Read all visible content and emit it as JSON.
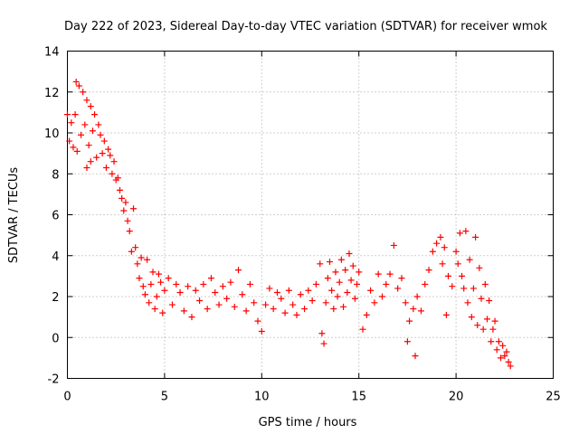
{
  "chart_data": {
    "type": "scatter",
    "title": "Day 222 of 2023, Sidereal Day-to-day VTEC variation (SDTVAR) for receiver wmok",
    "xlabel": "GPS time / hours",
    "ylabel": "SDTVAR / TECUs",
    "xlim": [
      0,
      25
    ],
    "ylim": [
      -2,
      14
    ],
    "xticks": [
      "0",
      "5",
      "10",
      "15",
      "20",
      "25"
    ],
    "yticks": [
      "-2",
      "0",
      "2",
      "4",
      "6",
      "8",
      "10",
      "12",
      "14"
    ],
    "grid": true,
    "marker": "+",
    "color": "#ff0000",
    "series": [
      {
        "name": "SDTVAR",
        "points": [
          [
            0.0,
            10.9
          ],
          [
            0.1,
            9.6
          ],
          [
            0.2,
            10.5
          ],
          [
            0.3,
            9.3
          ],
          [
            0.4,
            10.9
          ],
          [
            0.45,
            12.5
          ],
          [
            0.5,
            9.1
          ],
          [
            0.6,
            12.3
          ],
          [
            0.7,
            9.9
          ],
          [
            0.8,
            12.0
          ],
          [
            0.9,
            10.4
          ],
          [
            1.0,
            11.6
          ],
          [
            1.0,
            8.3
          ],
          [
            1.1,
            9.4
          ],
          [
            1.2,
            11.3
          ],
          [
            1.2,
            8.6
          ],
          [
            1.3,
            10.1
          ],
          [
            1.4,
            10.9
          ],
          [
            1.5,
            8.8
          ],
          [
            1.6,
            10.4
          ],
          [
            1.7,
            9.9
          ],
          [
            1.8,
            9.0
          ],
          [
            1.9,
            9.6
          ],
          [
            2.0,
            8.3
          ],
          [
            2.1,
            9.2
          ],
          [
            2.2,
            8.9
          ],
          [
            2.3,
            8.0
          ],
          [
            2.4,
            8.6
          ],
          [
            2.5,
            7.7
          ],
          [
            2.6,
            7.8
          ],
          [
            2.7,
            7.2
          ],
          [
            2.8,
            6.8
          ],
          [
            2.9,
            6.2
          ],
          [
            3.0,
            6.6
          ],
          [
            3.1,
            5.7
          ],
          [
            3.2,
            5.2
          ],
          [
            3.3,
            4.2
          ],
          [
            3.4,
            6.3
          ],
          [
            3.5,
            4.4
          ],
          [
            3.6,
            3.6
          ],
          [
            3.7,
            2.9
          ],
          [
            3.8,
            3.9
          ],
          [
            3.9,
            2.5
          ],
          [
            4.0,
            2.1
          ],
          [
            4.1,
            3.8
          ],
          [
            4.2,
            1.7
          ],
          [
            4.3,
            2.6
          ],
          [
            4.4,
            3.2
          ],
          [
            4.5,
            1.4
          ],
          [
            4.6,
            2.0
          ],
          [
            4.7,
            3.1
          ],
          [
            4.8,
            2.7
          ],
          [
            4.9,
            1.2
          ],
          [
            5.0,
            2.3
          ],
          [
            5.2,
            2.9
          ],
          [
            5.4,
            1.6
          ],
          [
            5.6,
            2.6
          ],
          [
            5.8,
            2.2
          ],
          [
            6.0,
            1.3
          ],
          [
            6.2,
            2.5
          ],
          [
            6.4,
            1.0
          ],
          [
            6.6,
            2.3
          ],
          [
            6.8,
            1.8
          ],
          [
            7.0,
            2.6
          ],
          [
            7.2,
            1.4
          ],
          [
            7.4,
            2.9
          ],
          [
            7.6,
            2.2
          ],
          [
            7.8,
            1.6
          ],
          [
            8.0,
            2.5
          ],
          [
            8.2,
            1.9
          ],
          [
            8.4,
            2.7
          ],
          [
            8.6,
            1.5
          ],
          [
            8.8,
            3.3
          ],
          [
            9.0,
            2.1
          ],
          [
            9.2,
            1.3
          ],
          [
            9.4,
            2.6
          ],
          [
            9.6,
            1.7
          ],
          [
            9.8,
            0.8
          ],
          [
            10.0,
            0.3
          ],
          [
            10.2,
            1.6
          ],
          [
            10.4,
            2.4
          ],
          [
            10.6,
            1.4
          ],
          [
            10.8,
            2.2
          ],
          [
            11.0,
            1.9
          ],
          [
            11.2,
            1.2
          ],
          [
            11.4,
            2.3
          ],
          [
            11.6,
            1.6
          ],
          [
            11.8,
            1.1
          ],
          [
            12.0,
            2.1
          ],
          [
            12.2,
            1.4
          ],
          [
            12.4,
            2.3
          ],
          [
            12.6,
            1.8
          ],
          [
            12.8,
            2.6
          ],
          [
            13.0,
            3.6
          ],
          [
            13.1,
            0.2
          ],
          [
            13.2,
            -0.3
          ],
          [
            13.3,
            1.7
          ],
          [
            13.4,
            2.9
          ],
          [
            13.5,
            3.7
          ],
          [
            13.6,
            2.3
          ],
          [
            13.7,
            1.4
          ],
          [
            13.8,
            3.2
          ],
          [
            13.9,
            2.0
          ],
          [
            14.0,
            2.7
          ],
          [
            14.1,
            3.8
          ],
          [
            14.2,
            1.5
          ],
          [
            14.3,
            3.3
          ],
          [
            14.4,
            2.2
          ],
          [
            14.5,
            4.1
          ],
          [
            14.6,
            2.8
          ],
          [
            14.7,
            3.5
          ],
          [
            14.8,
            1.9
          ],
          [
            14.9,
            2.6
          ],
          [
            15.0,
            3.2
          ],
          [
            15.2,
            0.4
          ],
          [
            15.4,
            1.1
          ],
          [
            15.6,
            2.3
          ],
          [
            15.8,
            1.7
          ],
          [
            16.0,
            3.1
          ],
          [
            16.2,
            2.0
          ],
          [
            16.4,
            2.6
          ],
          [
            16.6,
            3.1
          ],
          [
            16.8,
            4.5
          ],
          [
            17.0,
            2.4
          ],
          [
            17.2,
            2.9
          ],
          [
            17.4,
            1.7
          ],
          [
            17.5,
            -0.2
          ],
          [
            17.6,
            0.8
          ],
          [
            17.8,
            1.4
          ],
          [
            17.9,
            -0.9
          ],
          [
            18.0,
            2.0
          ],
          [
            18.2,
            1.3
          ],
          [
            18.4,
            2.6
          ],
          [
            18.6,
            3.3
          ],
          [
            18.8,
            4.2
          ],
          [
            19.0,
            4.6
          ],
          [
            19.2,
            4.9
          ],
          [
            19.3,
            3.6
          ],
          [
            19.4,
            4.4
          ],
          [
            19.5,
            1.1
          ],
          [
            19.6,
            3.0
          ],
          [
            19.8,
            2.5
          ],
          [
            20.0,
            4.2
          ],
          [
            20.1,
            3.6
          ],
          [
            20.2,
            5.1
          ],
          [
            20.3,
            3.0
          ],
          [
            20.4,
            2.4
          ],
          [
            20.5,
            5.2
          ],
          [
            20.6,
            1.7
          ],
          [
            20.7,
            3.8
          ],
          [
            20.8,
            1.0
          ],
          [
            20.9,
            2.4
          ],
          [
            21.0,
            4.9
          ],
          [
            21.1,
            0.6
          ],
          [
            21.2,
            3.4
          ],
          [
            21.3,
            1.9
          ],
          [
            21.4,
            0.4
          ],
          [
            21.5,
            2.6
          ],
          [
            21.6,
            0.9
          ],
          [
            21.7,
            1.8
          ],
          [
            21.8,
            -0.2
          ],
          [
            21.9,
            0.4
          ],
          [
            22.0,
            0.8
          ],
          [
            22.1,
            -0.6
          ],
          [
            22.2,
            -0.2
          ],
          [
            22.3,
            -1.0
          ],
          [
            22.4,
            -0.4
          ],
          [
            22.5,
            -0.9
          ],
          [
            22.6,
            -0.7
          ],
          [
            22.7,
            -1.2
          ],
          [
            22.8,
            -1.4
          ]
        ]
      }
    ]
  }
}
